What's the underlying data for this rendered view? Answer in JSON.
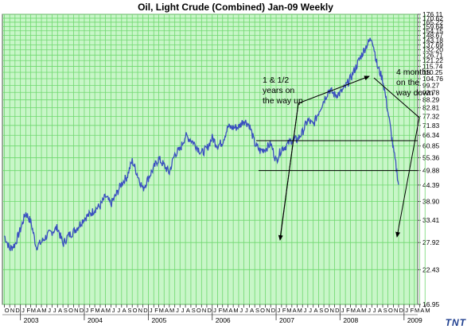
{
  "chart_data": {
    "type": "line",
    "title": "Oil, Light Crude (Combined) Jan-09  Weekly",
    "ylim": [
      16.95,
      176.11
    ],
    "yscale": "log",
    "ytick_labels": [
      "176.11",
      "170.62",
      "165.22",
      "159.64",
      "154.15",
      "148.67",
      "143.18",
      "137.69",
      "132.20",
      "126.71",
      "121.22",
      "115.74",
      "110.25",
      "104.76",
      "99.27",
      "93.78",
      "88.29",
      "82.81",
      "77.32",
      "71.83",
      "66.34",
      "60.85",
      "55.36",
      "49.88",
      "44.39",
      "38.90",
      "33.41",
      "27.92",
      "22.43",
      "16.95"
    ],
    "month_labels": [
      "O",
      "N",
      "D",
      "J",
      "F",
      "M",
      "A",
      "M",
      "J",
      "J",
      "A",
      "S",
      "O",
      "N",
      "D",
      "J",
      "F",
      "M",
      "A",
      "M",
      "J",
      "J",
      "A",
      "S",
      "O",
      "N",
      "D",
      "J",
      "F",
      "M",
      "A",
      "M",
      "J",
      "J",
      "A",
      "S",
      "O",
      "N",
      "D",
      "J",
      "F",
      "M",
      "A",
      "M",
      "J",
      "J",
      "A",
      "S",
      "O",
      "N",
      "D",
      "J",
      "F",
      "M",
      "A",
      "M",
      "J",
      "J",
      "A",
      "S",
      "O",
      "N",
      "D",
      "J",
      "F",
      "M",
      "A",
      "M",
      "J",
      "J",
      "A",
      "S",
      "O",
      "N",
      "D",
      "J",
      "F",
      "M",
      "A",
      "M"
    ],
    "year_labels": [
      "2003",
      "2004",
      "2005",
      "2006",
      "2007",
      "2008",
      "2009"
    ],
    "grid": true,
    "series": [
      {
        "color": "#3a4fc0",
        "points": [
          [
            "2002-10-01",
            29.5
          ],
          [
            "2002-11-01",
            26.5
          ],
          [
            "2002-12-01",
            27.5
          ],
          [
            "2003-01-01",
            31.0
          ],
          [
            "2003-02-01",
            35.5
          ],
          [
            "2003-03-01",
            33.0
          ],
          [
            "2003-04-01",
            27.0
          ],
          [
            "2003-05-01",
            28.0
          ],
          [
            "2003-06-01",
            29.5
          ],
          [
            "2003-07-01",
            30.5
          ],
          [
            "2003-08-01",
            31.5
          ],
          [
            "2003-09-01",
            27.5
          ],
          [
            "2003-10-01",
            29.5
          ],
          [
            "2003-11-01",
            30.5
          ],
          [
            "2003-12-01",
            32.0
          ],
          [
            "2004-01-01",
            34.0
          ],
          [
            "2004-02-01",
            35.0
          ],
          [
            "2004-03-01",
            36.5
          ],
          [
            "2004-04-01",
            37.5
          ],
          [
            "2004-05-01",
            40.5
          ],
          [
            "2004-06-01",
            38.0
          ],
          [
            "2004-07-01",
            41.0
          ],
          [
            "2004-08-01",
            45.0
          ],
          [
            "2004-09-01",
            47.5
          ],
          [
            "2004-10-01",
            54.0
          ],
          [
            "2004-11-01",
            48.0
          ],
          [
            "2004-12-01",
            43.0
          ],
          [
            "2005-01-01",
            47.0
          ],
          [
            "2005-02-01",
            51.0
          ],
          [
            "2005-03-01",
            55.0
          ],
          [
            "2005-04-01",
            52.0
          ],
          [
            "2005-05-01",
            49.0
          ],
          [
            "2005-06-01",
            57.0
          ],
          [
            "2005-07-01",
            59.0
          ],
          [
            "2005-08-01",
            66.0
          ],
          [
            "2005-09-01",
            64.0
          ],
          [
            "2005-10-01",
            61.0
          ],
          [
            "2005-11-01",
            57.5
          ],
          [
            "2005-12-01",
            59.5
          ],
          [
            "2006-01-01",
            65.0
          ],
          [
            "2006-02-01",
            61.0
          ],
          [
            "2006-03-01",
            63.0
          ],
          [
            "2006-04-01",
            71.0
          ],
          [
            "2006-05-01",
            70.5
          ],
          [
            "2006-06-01",
            71.0
          ],
          [
            "2006-07-01",
            75.0
          ],
          [
            "2006-08-01",
            72.0
          ],
          [
            "2006-09-01",
            62.0
          ],
          [
            "2006-10-01",
            58.5
          ],
          [
            "2006-11-01",
            59.5
          ],
          [
            "2006-12-01",
            62.0
          ],
          [
            "2007-01-01",
            54.0
          ],
          [
            "2007-02-01",
            59.5
          ],
          [
            "2007-03-01",
            61.0
          ],
          [
            "2007-04-01",
            64.0
          ],
          [
            "2007-05-01",
            64.0
          ],
          [
            "2007-06-01",
            68.0
          ],
          [
            "2007-07-01",
            75.0
          ],
          [
            "2007-08-01",
            72.0
          ],
          [
            "2007-09-01",
            80.0
          ],
          [
            "2007-10-01",
            88.0
          ],
          [
            "2007-11-01",
            96.0
          ],
          [
            "2007-12-01",
            92.0
          ],
          [
            "2008-01-01",
            93.0
          ],
          [
            "2008-02-01",
            98.0
          ],
          [
            "2008-03-01",
            105.0
          ],
          [
            "2008-04-01",
            115.0
          ],
          [
            "2008-05-01",
            126.0
          ],
          [
            "2008-06-01",
            137.0
          ],
          [
            "2008-07-01",
            146.0
          ],
          [
            "2008-08-01",
            116.0
          ],
          [
            "2008-09-01",
            104.0
          ],
          [
            "2008-10-01",
            80.0
          ],
          [
            "2008-11-01",
            59.0
          ],
          [
            "2008-12-01",
            44.5
          ]
        ]
      }
    ],
    "annotations": [
      {
        "text": [
          "1 & 1/2",
          "years on",
          "the way up"
        ]
      },
      {
        "text": [
          "4 months",
          "on the",
          "way down"
        ]
      }
    ],
    "reference_levels": [
      63.5,
      49.9
    ]
  },
  "logo_text": "TNT"
}
